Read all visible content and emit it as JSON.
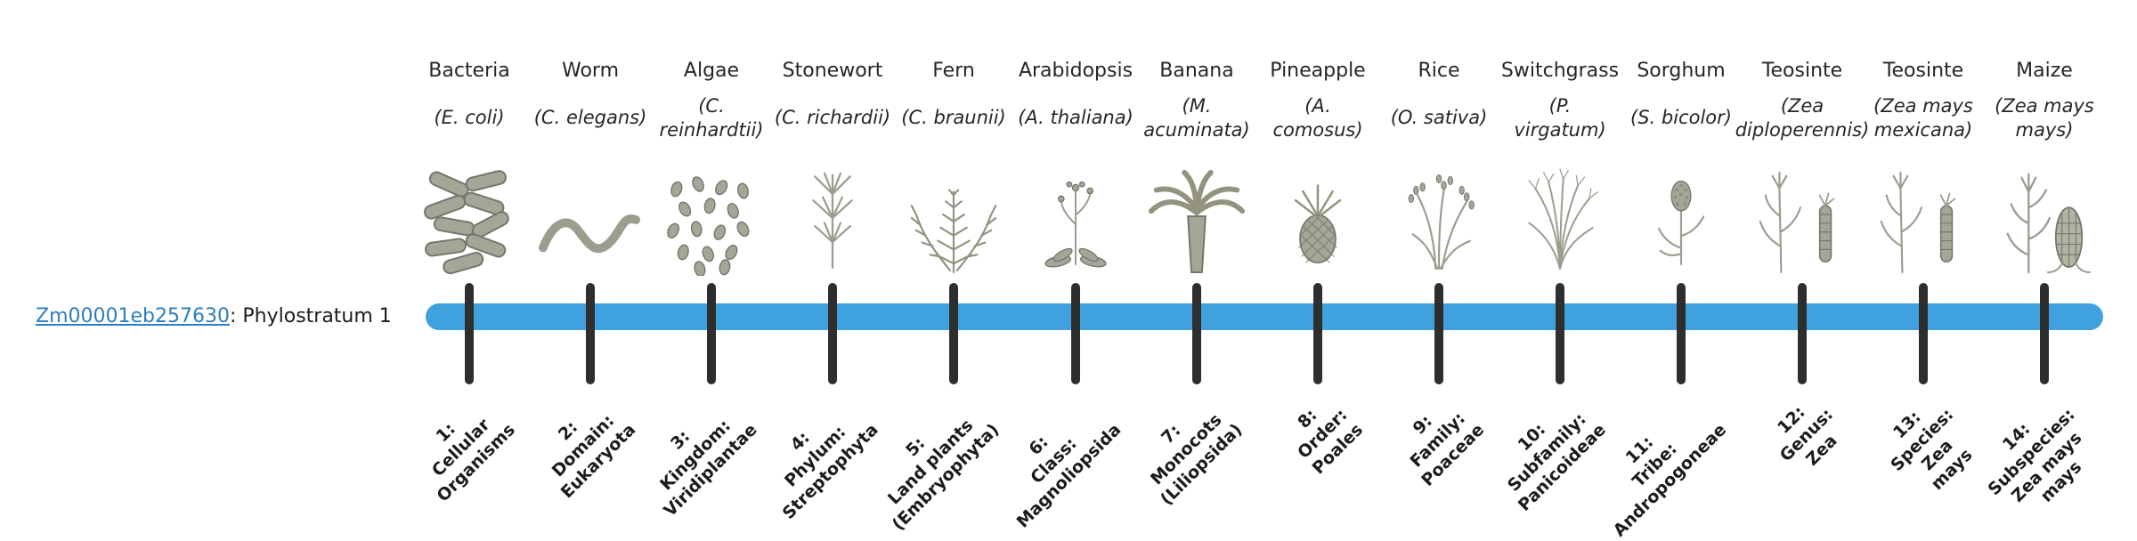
{
  "gene": {
    "id": "Zm00001eb257630",
    "suffix": ": Phylostratum 1",
    "link_color": "#2e7ebf"
  },
  "timeline": {
    "bar_color": "#3fa2de",
    "tick_color": "#2e2e2e"
  },
  "organisms": [
    {
      "common": "Bacteria",
      "scientific": "(E. coli)",
      "icon": "bacteria-icon",
      "stratum": "1:\nCellular\nOrganisms"
    },
    {
      "common": "Worm",
      "scientific": "(C. elegans)",
      "icon": "worm-icon",
      "stratum": "2:\nDomain:\nEukaryota"
    },
    {
      "common": "Algae",
      "scientific": "(C.\nreinhardtii)",
      "icon": "algae-icon",
      "stratum": "3:\nKingdom:\nViridiplantae"
    },
    {
      "common": "Stonewort",
      "scientific": "(C. richardii)",
      "icon": "stonewort-icon",
      "stratum": "4:\nPhylum:\nStreptophyta"
    },
    {
      "common": "Fern",
      "scientific": "(C. braunii)",
      "icon": "fern-icon",
      "stratum": "5:\nLand plants\n(Embryophyta)"
    },
    {
      "common": "Arabidopsis",
      "scientific": "(A. thaliana)",
      "icon": "arabidopsis-icon",
      "stratum": "6:\nClass:\nMagnoliopsida"
    },
    {
      "common": "Banana",
      "scientific": "(M.\nacuminata)",
      "icon": "banana-icon",
      "stratum": "7:\nMonocots\n(Liliopsida)"
    },
    {
      "common": "Pineapple",
      "scientific": "(A.\ncomosus)",
      "icon": "pineapple-icon",
      "stratum": "8:\nOrder:\nPoales"
    },
    {
      "common": "Rice",
      "scientific": "(O. sativa)",
      "icon": "rice-icon",
      "stratum": "9:\nFamily:\nPoaceae"
    },
    {
      "common": "Switchgrass",
      "scientific": "(P.\nvirgatum)",
      "icon": "switchgrass-icon",
      "stratum": "10:\nSubfamily:\nPanicoideae"
    },
    {
      "common": "Sorghum",
      "scientific": "(S. bicolor)",
      "icon": "sorghum-icon",
      "stratum": "11:\nTribe:\nAndropogoneae"
    },
    {
      "common": "Teosinte",
      "scientific": "(Zea\ndiploperennis)",
      "icon": "teosinte-icon",
      "stratum": "12:\nGenus:\nZea"
    },
    {
      "common": "Teosinte",
      "scientific": "(Zea mays\nmexicana)",
      "icon": "teosinte-icon",
      "stratum": "13:\nSpecies:\nZea\nmays"
    },
    {
      "common": "Maize",
      "scientific": "(Zea mays\nmays)",
      "icon": "maize-icon",
      "stratum": "14:\nSubspecies:\nZea mays\nmays"
    }
  ]
}
